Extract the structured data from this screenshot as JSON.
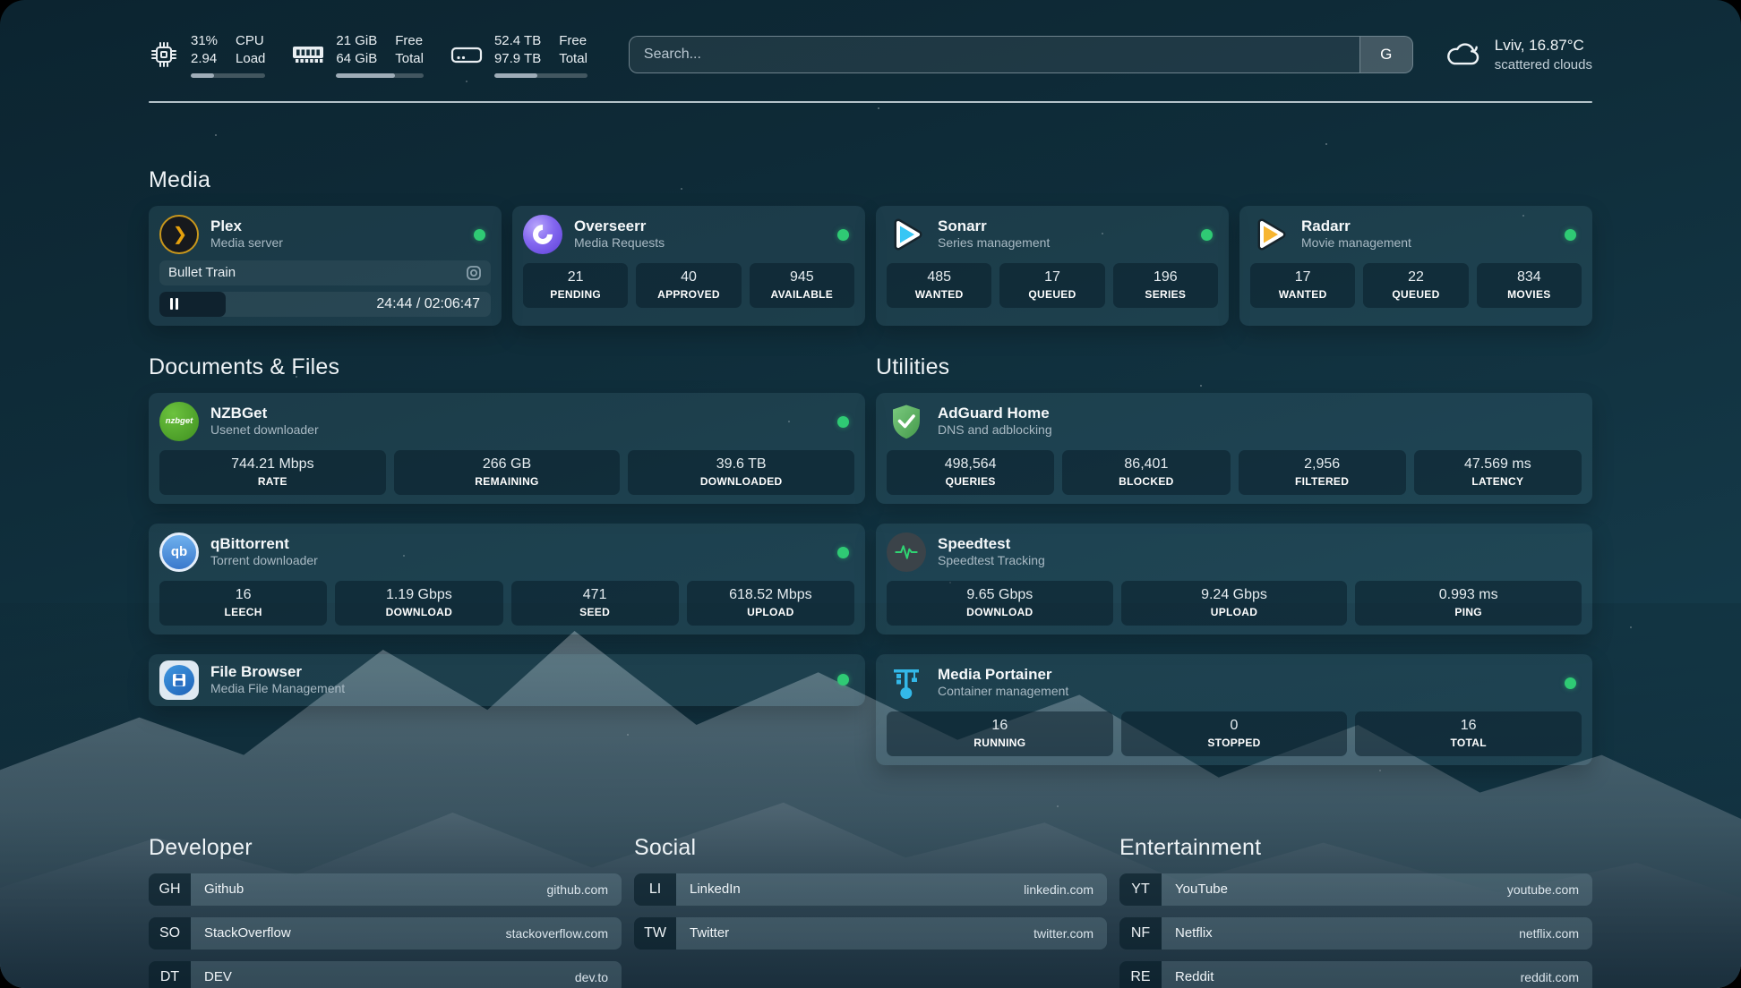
{
  "colors": {
    "status_green": "#2fca74",
    "plex_yellow": "#e5a00d",
    "overseerr_purple": "#7a5cf5",
    "sonarr_blue": "#38c6f4",
    "radarr_yellow": "#f7b530",
    "nzbget_green": "#54ad2a",
    "qbittorrent_blue": "#4787d3",
    "adguard_green": "#57a65a",
    "speedtest_green": "#2fd573",
    "portainer_cyan": "#33b8e8"
  },
  "header": {
    "resources": [
      {
        "name": "cpu",
        "values": [
          "31%",
          "2.94"
        ],
        "labels": [
          "CPU",
          "Load"
        ],
        "percent": 31
      },
      {
        "name": "memory",
        "values": [
          "21 GiB",
          "64 GiB"
        ],
        "labels": [
          "Free",
          "Total"
        ],
        "percent": 67
      },
      {
        "name": "disk",
        "values": [
          "52.4 TB",
          "97.9 TB"
        ],
        "labels": [
          "Free",
          "Total"
        ],
        "percent": 46
      }
    ],
    "search": {
      "placeholder": "Search...",
      "button_label": "G"
    },
    "weather": {
      "location": "Lviv, 16.87°C",
      "condition": "scattered clouds"
    }
  },
  "sections": {
    "media": {
      "title": "Media",
      "plex": {
        "name": "Plex",
        "description": "Media server",
        "now_playing": "Bullet Train",
        "time": "24:44 / 02:06:47",
        "progress_percent": 20
      },
      "overseerr": {
        "name": "Overseerr",
        "description": "Media Requests",
        "stats": [
          {
            "value": "21",
            "label": "PENDING"
          },
          {
            "value": "40",
            "label": "APPROVED"
          },
          {
            "value": "945",
            "label": "AVAILABLE"
          }
        ]
      },
      "sonarr": {
        "name": "Sonarr",
        "description": "Series management",
        "stats": [
          {
            "value": "485",
            "label": "WANTED"
          },
          {
            "value": "17",
            "label": "QUEUED"
          },
          {
            "value": "196",
            "label": "SERIES"
          }
        ]
      },
      "radarr": {
        "name": "Radarr",
        "description": "Movie management",
        "stats": [
          {
            "value": "17",
            "label": "WANTED"
          },
          {
            "value": "22",
            "label": "QUEUED"
          },
          {
            "value": "834",
            "label": "MOVIES"
          }
        ]
      }
    },
    "documents": {
      "title": "Documents & Files",
      "nzbget": {
        "name": "NZBGet",
        "description": "Usenet downloader",
        "stats": [
          {
            "value": "744.21 Mbps",
            "label": "RATE"
          },
          {
            "value": "266 GB",
            "label": "REMAINING"
          },
          {
            "value": "39.6 TB",
            "label": "DOWNLOADED"
          }
        ]
      },
      "qbittorrent": {
        "name": "qBittorrent",
        "description": "Torrent downloader",
        "stats": [
          {
            "value": "16",
            "label": "LEECH"
          },
          {
            "value": "1.19 Gbps",
            "label": "DOWNLOAD"
          },
          {
            "value": "471",
            "label": "SEED"
          },
          {
            "value": "618.52 Mbps",
            "label": "UPLOAD"
          }
        ]
      },
      "filebrowser": {
        "name": "File Browser",
        "description": "Media File Management"
      }
    },
    "utilities": {
      "title": "Utilities",
      "adguard": {
        "name": "AdGuard Home",
        "description": "DNS and adblocking",
        "stats": [
          {
            "value": "498,564",
            "label": "QUERIES"
          },
          {
            "value": "86,401",
            "label": "BLOCKED"
          },
          {
            "value": "2,956",
            "label": "FILTERED"
          },
          {
            "value": "47.569 ms",
            "label": "LATENCY"
          }
        ]
      },
      "speedtest": {
        "name": "Speedtest",
        "description": "Speedtest Tracking",
        "stats": [
          {
            "value": "9.65 Gbps",
            "label": "DOWNLOAD"
          },
          {
            "value": "9.24 Gbps",
            "label": "UPLOAD"
          },
          {
            "value": "0.993 ms",
            "label": "PING"
          }
        ]
      },
      "portainer": {
        "name": "Media Portainer",
        "description": "Container management",
        "stats": [
          {
            "value": "16",
            "label": "RUNNING"
          },
          {
            "value": "0",
            "label": "STOPPED"
          },
          {
            "value": "16",
            "label": "TOTAL"
          }
        ]
      }
    }
  },
  "bookmarks": {
    "developer": {
      "title": "Developer",
      "links": [
        {
          "abbr": "GH",
          "name": "Github",
          "url": "github.com"
        },
        {
          "abbr": "SO",
          "name": "StackOverflow",
          "url": "stackoverflow.com"
        },
        {
          "abbr": "DT",
          "name": "DEV",
          "url": "dev.to"
        }
      ]
    },
    "social": {
      "title": "Social",
      "links": [
        {
          "abbr": "LI",
          "name": "LinkedIn",
          "url": "linkedin.com"
        },
        {
          "abbr": "TW",
          "name": "Twitter",
          "url": "twitter.com"
        }
      ]
    },
    "entertainment": {
      "title": "Entertainment",
      "links": [
        {
          "abbr": "YT",
          "name": "YouTube",
          "url": "youtube.com"
        },
        {
          "abbr": "NF",
          "name": "Netflix",
          "url": "netflix.com"
        },
        {
          "abbr": "RE",
          "name": "Reddit",
          "url": "reddit.com"
        }
      ]
    }
  }
}
